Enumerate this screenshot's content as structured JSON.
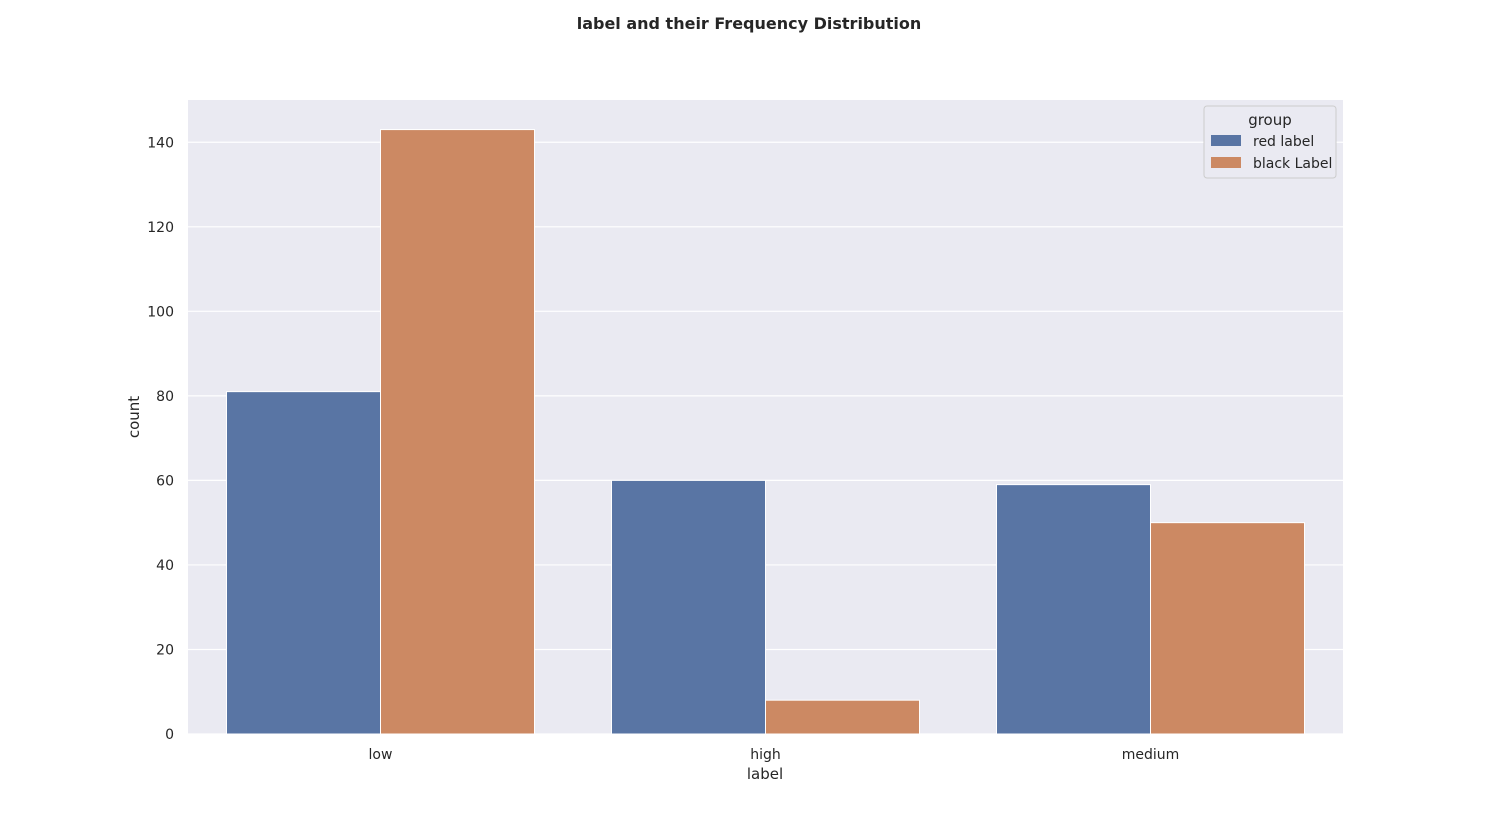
{
  "chart_data": {
    "type": "bar",
    "title": "label and their Frequency Distribution",
    "xlabel": "label",
    "ylabel": "count",
    "categories": [
      "low",
      "high",
      "medium"
    ],
    "series": [
      {
        "name": "red label",
        "values": [
          81,
          60,
          59
        ],
        "color": "#5975a4"
      },
      {
        "name": "black Label",
        "values": [
          143,
          8,
          50
        ],
        "color": "#cc8963"
      }
    ],
    "ylim": [
      0,
      150
    ],
    "yticks": [
      0,
      20,
      40,
      60,
      80,
      100,
      120,
      140
    ],
    "grid": true,
    "legend": {
      "title": "group",
      "placement": "top-right"
    }
  },
  "colors": {
    "plot_background": "#eaeaf2",
    "grid": "#ffffff"
  }
}
